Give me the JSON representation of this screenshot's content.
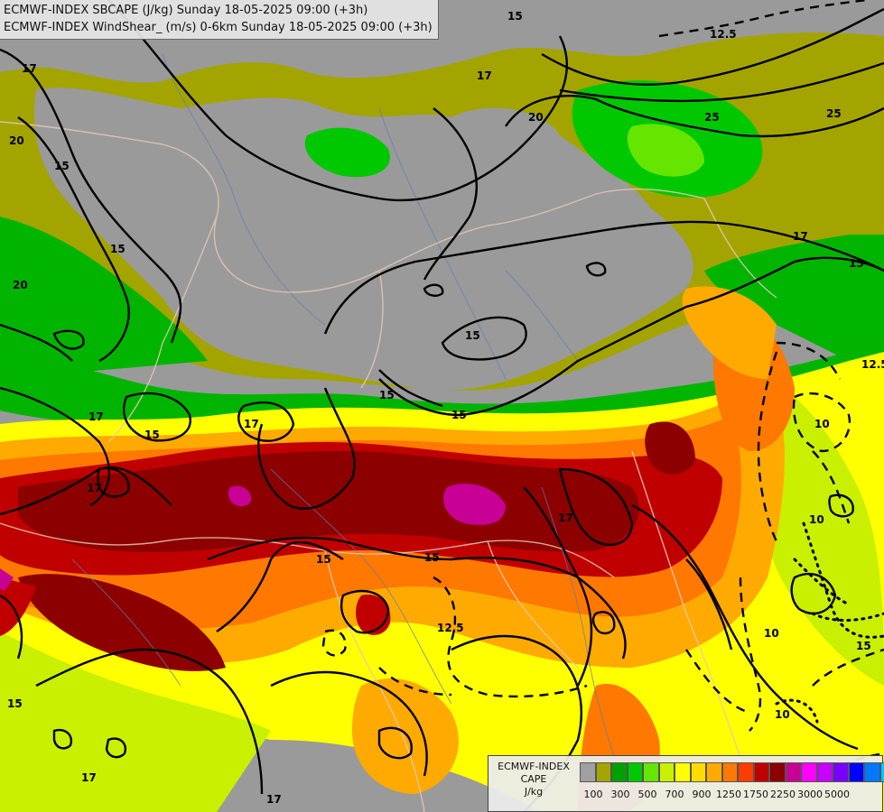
{
  "header": {
    "line1": "ECMWF-INDEX SBCAPE (J/kg) Sunday 18-05-2025 09:00 (+3h)",
    "line2": "ECMWF-INDEX WindShear_ (m/s) 0-6km Sunday 18-05-2025 09:00 (+3h)"
  },
  "legend": {
    "line1": "ECMWF-INDEX",
    "line2": "CAPE",
    "line3": "J/kg",
    "colors": [
      "#a0a0a0",
      "#a4a400",
      "#00a000",
      "#00c800",
      "#64e600",
      "#c8f000",
      "#ffff00",
      "#ffdc00",
      "#ffaa00",
      "#ff7800",
      "#ff3c00",
      "#c00000",
      "#8c0000",
      "#c80096",
      "#ff00ff",
      "#c800ff",
      "#7800ff",
      "#0000ff",
      "#0078ff",
      "#00c8ff",
      "#64ffff",
      "#ffffff"
    ],
    "ticks": [
      "100",
      "300",
      "500",
      "700",
      "900",
      "1250",
      "1750",
      "2250",
      "3000",
      "5000"
    ]
  },
  "contour_labels": [
    {
      "text": "15"
    },
    {
      "text": "12.5"
    },
    {
      "text": "17"
    },
    {
      "text": "20"
    },
    {
      "text": "25"
    },
    {
      "text": "25"
    },
    {
      "text": "20"
    },
    {
      "text": "15"
    },
    {
      "text": "15"
    },
    {
      "text": "20"
    },
    {
      "text": "17"
    },
    {
      "text": "15"
    },
    {
      "text": "17"
    },
    {
      "text": "15"
    },
    {
      "text": "15"
    },
    {
      "text": "15"
    },
    {
      "text": "17"
    },
    {
      "text": "17"
    },
    {
      "text": "17"
    },
    {
      "text": "15"
    },
    {
      "text": "15"
    },
    {
      "text": "12.5"
    },
    {
      "text": "17"
    },
    {
      "text": "15"
    },
    {
      "text": "17"
    },
    {
      "text": "17"
    },
    {
      "text": "10"
    },
    {
      "text": "10"
    },
    {
      "text": "10"
    },
    {
      "text": "10"
    },
    {
      "text": "12.5"
    },
    {
      "text": "15"
    },
    {
      "text": "15"
    }
  ]
}
